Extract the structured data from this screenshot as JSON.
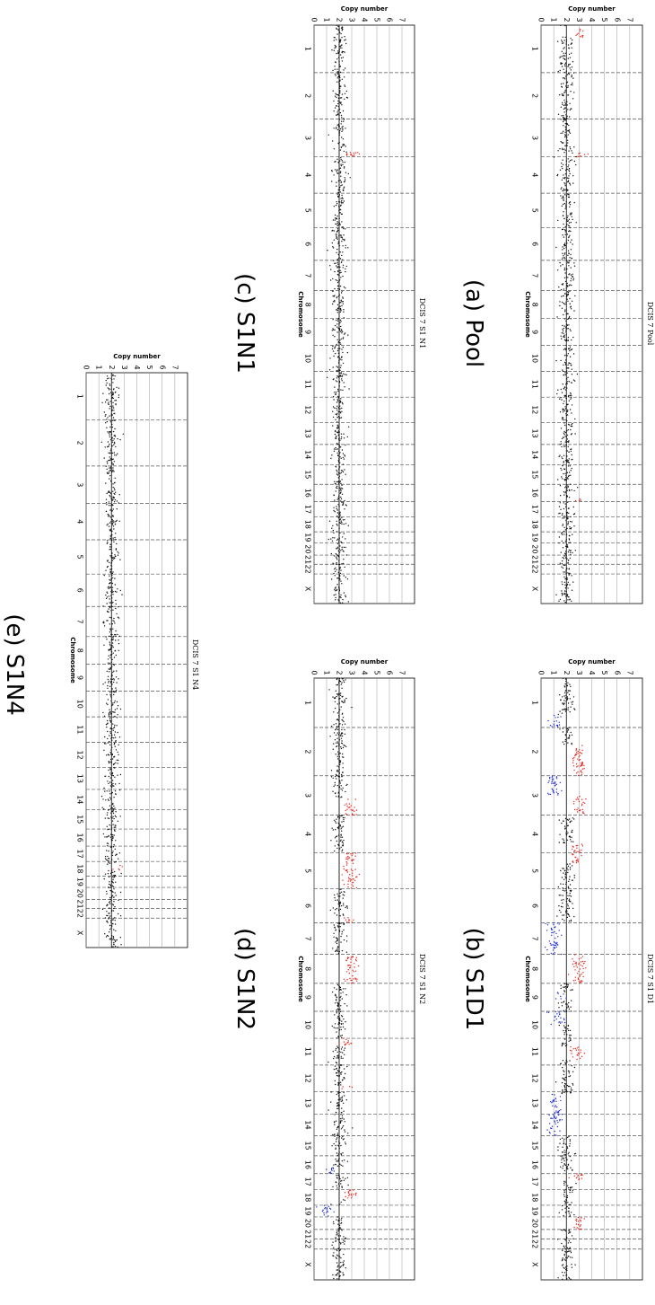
{
  "chart_data": [
    {
      "type": "scatter",
      "title": "DCIS 7 Pool",
      "caption": "(a) Pool",
      "xlabel": "Chromosome",
      "ylabel": "Copy number",
      "ylim": [
        0,
        8
      ],
      "yticks": [
        0,
        1,
        2,
        3,
        4,
        5,
        6,
        7
      ],
      "chromosomes": [
        "1",
        "2",
        "3",
        "4",
        "5",
        "6",
        "7",
        "8",
        "9",
        "10",
        "11",
        "12",
        "13",
        "14",
        "15",
        "16",
        "17",
        "18",
        "19",
        "20",
        "21",
        "22",
        "X"
      ],
      "ploidy_line": 2,
      "segments": [
        {
          "chr": "1",
          "state": "gain",
          "value": 3.0,
          "from": 0.05,
          "to": 0.25
        },
        {
          "chr": "3",
          "state": "gain",
          "value": 2.9,
          "from": 0.9,
          "to": 1.0
        },
        {
          "chr": "16",
          "state": "gain",
          "value": 2.9,
          "from": 0.85,
          "to": 1.0
        }
      ]
    },
    {
      "type": "scatter",
      "title": "DCIS 7 S1 D1",
      "caption": "(b) S1D1",
      "xlabel": "Chromosome",
      "ylabel": "Copy number",
      "ylim": [
        0,
        8
      ],
      "yticks": [
        0,
        1,
        2,
        3,
        4,
        5,
        6,
        7
      ],
      "chromosomes": [
        "1",
        "2",
        "3",
        "4",
        "5",
        "6",
        "7",
        "8",
        "9",
        "10",
        "11",
        "12",
        "13",
        "14",
        "15",
        "16",
        "17",
        "18",
        "19",
        "20",
        "21",
        "22",
        "X"
      ],
      "ploidy_line": 2,
      "segments": [
        {
          "chr": "1",
          "state": "loss",
          "value": 1.3,
          "from": 0.75,
          "to": 1.0
        },
        {
          "chr": "2",
          "state": "gain",
          "value": 2.9,
          "from": 0.35,
          "to": 1.0
        },
        {
          "chr": "3",
          "state": "loss",
          "value": 1.0,
          "from": 0.0,
          "to": 0.5
        },
        {
          "chr": "3",
          "state": "gain",
          "value": 3.0,
          "from": 0.5,
          "to": 1.0
        },
        {
          "chr": "4",
          "state": "gain",
          "value": 2.9,
          "from": 0.75,
          "to": 1.0
        },
        {
          "chr": "5",
          "state": "gain",
          "value": 2.8,
          "from": 0.0,
          "to": 0.3
        },
        {
          "chr": "7",
          "state": "loss",
          "value": 1.0,
          "from": 0.0,
          "to": 1.0
        },
        {
          "chr": "8",
          "state": "gain",
          "value": 2.9,
          "from": 0.0,
          "to": 1.0
        },
        {
          "chr": "9",
          "state": "loss",
          "value": 1.4,
          "from": 0.3,
          "to": 0.6
        },
        {
          "chr": "10",
          "state": "loss",
          "value": 1.4,
          "from": 0.0,
          "to": 0.5
        },
        {
          "chr": "11",
          "state": "gain",
          "value": 2.9,
          "from": 0.3,
          "to": 0.8
        },
        {
          "chr": "13",
          "state": "loss",
          "value": 1.1,
          "from": 0.1,
          "to": 1.0
        },
        {
          "chr": "14",
          "state": "loss",
          "value": 1.1,
          "from": 0.0,
          "to": 1.0
        },
        {
          "chr": "17",
          "state": "gain",
          "value": 2.9,
          "from": 0.0,
          "to": 0.4
        },
        {
          "chr": "20",
          "state": "gain",
          "value": 2.9,
          "from": 0.0,
          "to": 1.0
        }
      ]
    },
    {
      "type": "scatter",
      "title": "DCIS 7 S1 N1",
      "caption": "(c) S1N1",
      "xlabel": "Chromosome",
      "ylabel": "Copy number",
      "ylim": [
        0,
        8
      ],
      "yticks": [
        0,
        1,
        2,
        3,
        4,
        5,
        6,
        7
      ],
      "chromosomes": [
        "1",
        "2",
        "3",
        "4",
        "5",
        "6",
        "7",
        "8",
        "9",
        "10",
        "11",
        "12",
        "13",
        "14",
        "15",
        "16",
        "17",
        "18",
        "19",
        "20",
        "21",
        "22",
        "X"
      ],
      "ploidy_line": 2,
      "segments": [
        {
          "chr": "3",
          "state": "gain",
          "value": 2.9,
          "from": 0.88,
          "to": 1.0
        }
      ]
    },
    {
      "type": "scatter",
      "title": "DCIS 7 S1 N2",
      "caption": "(d) S1N2",
      "xlabel": "Chromosome",
      "ylabel": "Copy number",
      "ylim": [
        0,
        8
      ],
      "yticks": [
        0,
        1,
        2,
        3,
        4,
        5,
        6,
        7
      ],
      "chromosomes": [
        "1",
        "2",
        "3",
        "4",
        "5",
        "6",
        "7",
        "8",
        "9",
        "10",
        "11",
        "12",
        "13",
        "14",
        "15",
        "16",
        "17",
        "18",
        "19",
        "20",
        "21",
        "22",
        "X"
      ],
      "ploidy_line": 2,
      "segments": [
        {
          "chr": "3",
          "state": "gain",
          "value": 2.9,
          "from": 0.6,
          "to": 1.0
        },
        {
          "chr": "5",
          "state": "gain",
          "value": 2.9,
          "from": 0.0,
          "to": 1.0
        },
        {
          "chr": "6",
          "state": "gain",
          "value": 2.8,
          "from": 0.8,
          "to": 1.0
        },
        {
          "chr": "8",
          "state": "gain",
          "value": 2.9,
          "from": 0.0,
          "to": 1.0
        },
        {
          "chr": "11",
          "state": "gain",
          "value": 2.7,
          "from": 0.0,
          "to": 0.3
        },
        {
          "chr": "12",
          "state": "gain",
          "value": 2.8,
          "from": 0.8,
          "to": 1.0
        },
        {
          "chr": "16",
          "state": "loss",
          "value": 1.4,
          "from": 0.6,
          "to": 1.0
        },
        {
          "chr": "18",
          "state": "gain",
          "value": 2.9,
          "from": 0.0,
          "to": 0.6
        },
        {
          "chr": "19",
          "state": "loss",
          "value": 1.0,
          "from": 0.0,
          "to": 1.0
        }
      ]
    },
    {
      "type": "scatter",
      "title": "DCIS 7 S1 N4",
      "caption": "(e) S1N4",
      "xlabel": "Chromosome",
      "ylabel": "Copy number",
      "ylim": [
        0,
        8
      ],
      "yticks": [
        0,
        1,
        2,
        3,
        4,
        5,
        6,
        7
      ],
      "chromosomes": [
        "1",
        "2",
        "3",
        "4",
        "5",
        "6",
        "7",
        "8",
        "9",
        "10",
        "11",
        "12",
        "13",
        "14",
        "15",
        "16",
        "17",
        "18",
        "19",
        "20",
        "21",
        "22",
        "X"
      ],
      "ploidy_line": 2,
      "segments": [
        {
          "chr": "18",
          "state": "gain",
          "value": 2.9,
          "from": 0.2,
          "to": 0.6
        }
      ]
    }
  ],
  "colors": {
    "neutral": "#111111",
    "gain": "#e8231b",
    "loss": "#1f2bd6",
    "grid": "#999999",
    "dashed": "#555555",
    "axis": "#000000"
  }
}
